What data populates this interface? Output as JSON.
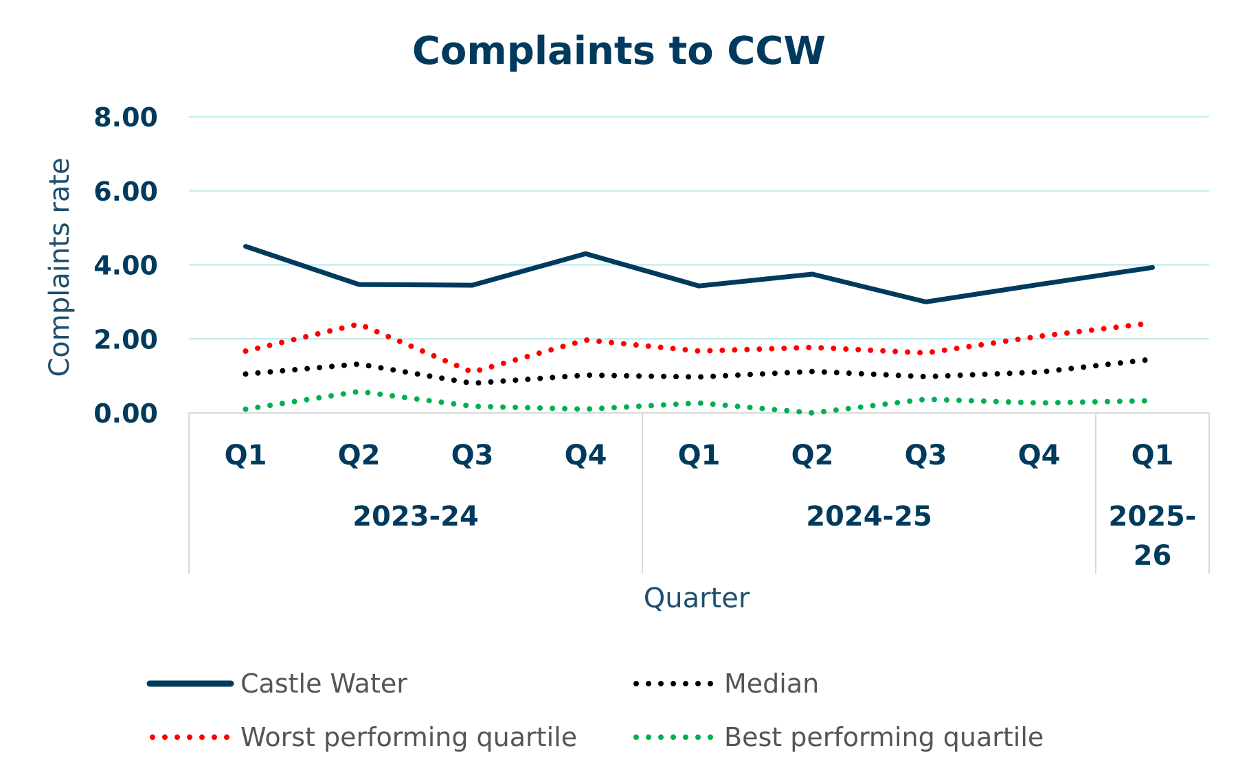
{
  "chart_data": {
    "type": "line",
    "title": "Complaints to CCW",
    "xlabel": "Quarter",
    "ylabel": "Complaints rate",
    "ylim": [
      0,
      8
    ],
    "yticks": [
      "0.00",
      "2.00",
      "4.00",
      "6.00",
      "8.00"
    ],
    "categories": [
      "Q1",
      "Q2",
      "Q3",
      "Q4",
      "Q1",
      "Q2",
      "Q3",
      "Q4",
      "Q1"
    ],
    "groups": [
      {
        "label": "2023-24",
        "count": 4
      },
      {
        "label": "2024-25",
        "count": 4
      },
      {
        "label": "2025-26",
        "count": 1
      }
    ],
    "grid": true,
    "legend_position": "bottom",
    "series": [
      {
        "name": "Castle Water",
        "style": "solid",
        "color": "#003a5d",
        "values": [
          4.5,
          3.47,
          3.45,
          4.3,
          3.43,
          3.75,
          3.0,
          3.47,
          3.93
        ]
      },
      {
        "name": "Median",
        "style": "dotted",
        "color": "#000000",
        "values": [
          1.05,
          1.32,
          0.8,
          1.02,
          0.97,
          1.12,
          0.98,
          1.1,
          1.45
        ]
      },
      {
        "name": "Worst performing quartile",
        "style": "dotted",
        "color": "#ff0000",
        "values": [
          1.67,
          2.4,
          1.1,
          1.97,
          1.67,
          1.77,
          1.62,
          2.07,
          2.43
        ]
      },
      {
        "name": "Best performing quartile",
        "style": "dotted",
        "color": "#00b050",
        "values": [
          0.1,
          0.58,
          0.18,
          0.1,
          0.27,
          0.0,
          0.37,
          0.27,
          0.33
        ]
      }
    ],
    "colors": {
      "gridline": "#c5eff0",
      "axis": "#d9d9d9",
      "text": "#003a5d"
    }
  }
}
